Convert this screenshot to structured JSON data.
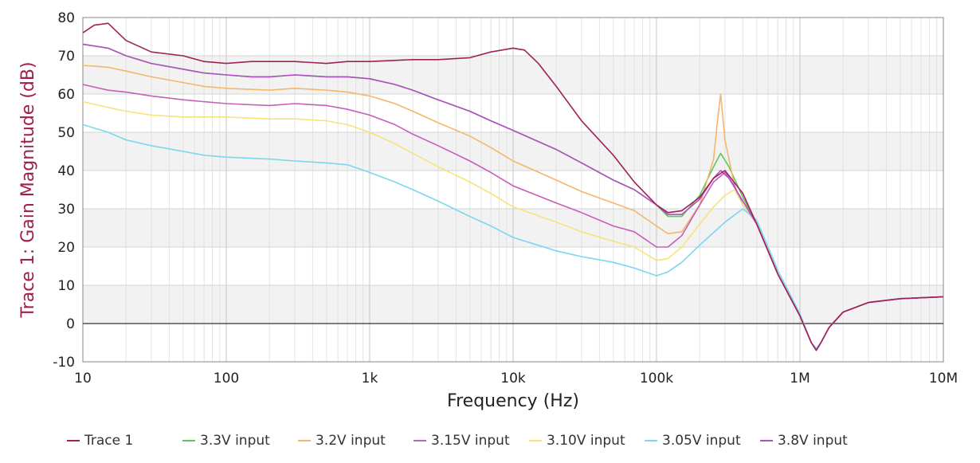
{
  "chart_data": {
    "type": "line",
    "title": "",
    "xlabel": "Frequency (Hz)",
    "ylabel": "Trace 1: Gain Magnitude (dB)",
    "x_scale": "log",
    "xlim": [
      10,
      10000000
    ],
    "ylim": [
      -10,
      80
    ],
    "x_ticks": [
      10,
      100,
      1000,
      10000,
      100000,
      1000000,
      10000000
    ],
    "x_tick_labels": [
      "10",
      "100",
      "1k",
      "10k",
      "100k",
      "1M",
      "10M"
    ],
    "y_ticks": [
      -10,
      0,
      10,
      20,
      30,
      40,
      50,
      60,
      70,
      80
    ],
    "grid": true,
    "legend_position": "bottom",
    "colors": {
      "ylabel": "#a0204a",
      "background_band": "#f2f2f2",
      "grid": "#d4d4d4",
      "zero_line": "#333333"
    },
    "series": [
      {
        "name": "Trace 1",
        "color": "#a0205a",
        "x": [
          10,
          12,
          15,
          20,
          30,
          50,
          70,
          100,
          150,
          200,
          300,
          500,
          700,
          1000,
          2000,
          3000,
          5000,
          7000,
          10000,
          12000,
          15000,
          20000,
          30000,
          50000,
          70000,
          100000,
          120000,
          150000,
          200000,
          250000,
          300000,
          400000,
          500000,
          700000,
          1000000,
          1200000,
          1300000,
          1400000,
          1600000,
          2000000,
          3000000,
          5000000,
          10000000
        ],
        "y": [
          76,
          78,
          78.5,
          74,
          71,
          70,
          68.5,
          68,
          68.5,
          68.5,
          68.5,
          68,
          68.5,
          68.5,
          69,
          69,
          69.5,
          71,
          72,
          71.5,
          68,
          62,
          53,
          44,
          37,
          31,
          29,
          29.5,
          33,
          38,
          40,
          34,
          26,
          13,
          2,
          -5,
          -7,
          -5,
          -1,
          3,
          5.5,
          6.5,
          7
        ]
      },
      {
        "name": "3.3V input",
        "color": "#5ec75a",
        "x": [
          10,
          15,
          20,
          30,
          50,
          70,
          100,
          150,
          200,
          300,
          500,
          700,
          1000,
          1500,
          2000,
          3000,
          5000,
          7000,
          10000,
          20000,
          30000,
          50000,
          70000,
          100000,
          120000,
          150000,
          200000,
          250000,
          280000,
          320000,
          400000,
          500000,
          700000,
          1000000,
          1200000,
          1300000,
          1400000,
          1600000,
          2000000,
          3000000,
          5000000,
          10000000
        ],
        "y": [
          73,
          72,
          70,
          68,
          66.5,
          65.5,
          65,
          64.5,
          64.5,
          65,
          64.5,
          64.5,
          64,
          62.5,
          61,
          58.5,
          55.5,
          53,
          50.5,
          45.5,
          42,
          37.5,
          35,
          31,
          28,
          28,
          33.5,
          41,
          44.5,
          41,
          33,
          26,
          13,
          2,
          -5,
          -7,
          -5,
          -1,
          3,
          5.5,
          6.5,
          7
        ]
      },
      {
        "name": "3.2V input",
        "color": "#f4b76a",
        "x": [
          10,
          15,
          20,
          30,
          50,
          70,
          100,
          200,
          300,
          500,
          700,
          1000,
          1500,
          2000,
          3000,
          5000,
          7000,
          10000,
          20000,
          30000,
          50000,
          70000,
          100000,
          120000,
          150000,
          200000,
          250000,
          270000,
          280000,
          300000,
          350000,
          400000,
          500000,
          700000,
          1000000,
          1200000,
          1300000,
          1400000,
          1600000,
          2000000,
          3000000,
          5000000,
          10000000
        ],
        "y": [
          67.5,
          67,
          66,
          64.5,
          63,
          62,
          61.5,
          61,
          61.5,
          61,
          60.5,
          59.5,
          57.5,
          55.5,
          52.5,
          49,
          46,
          42.5,
          37.5,
          34.5,
          31.5,
          29.5,
          25.5,
          23.5,
          24,
          31,
          43,
          55,
          60,
          48,
          36,
          31,
          26,
          13,
          2,
          -5,
          -7,
          -5,
          -1,
          3,
          5.5,
          6.5,
          7
        ]
      },
      {
        "name": "3.15V input",
        "color": "#c65fb8",
        "x": [
          10,
          15,
          20,
          30,
          50,
          70,
          100,
          200,
          300,
          500,
          700,
          1000,
          1500,
          2000,
          3000,
          5000,
          7000,
          10000,
          20000,
          30000,
          50000,
          70000,
          100000,
          120000,
          150000,
          200000,
          250000,
          300000,
          350000,
          400000,
          500000,
          700000,
          1000000,
          1200000,
          1300000,
          1400000,
          1600000,
          2000000,
          3000000,
          5000000,
          10000000
        ],
        "y": [
          62.5,
          61,
          60.5,
          59.5,
          58.5,
          58,
          57.5,
          57,
          57.5,
          57,
          56,
          54.5,
          52,
          49.5,
          46.5,
          42.5,
          39.5,
          36,
          31.5,
          29,
          25.5,
          24,
          20,
          20,
          23,
          31,
          37,
          39.5,
          36,
          31,
          26,
          13,
          2,
          -5,
          -7,
          -5,
          -1,
          3,
          5.5,
          6.5,
          7
        ]
      },
      {
        "name": "3.10V input",
        "color": "#f8e27a",
        "x": [
          10,
          15,
          20,
          30,
          50,
          70,
          100,
          200,
          300,
          500,
          700,
          1000,
          1500,
          2000,
          3000,
          5000,
          7000,
          10000,
          20000,
          30000,
          50000,
          70000,
          100000,
          120000,
          150000,
          200000,
          250000,
          300000,
          350000,
          400000,
          500000,
          700000,
          1000000,
          1200000,
          1300000,
          1400000,
          1600000,
          2000000,
          3000000,
          5000000,
          10000000
        ],
        "y": [
          58,
          56.5,
          55.5,
          54.5,
          54,
          54,
          54,
          53.5,
          53.5,
          53,
          52,
          50,
          47,
          44.5,
          41,
          37,
          34,
          30.5,
          26.5,
          24,
          21.5,
          20,
          16.5,
          17,
          20,
          26,
          30.5,
          33.5,
          35,
          31,
          26,
          13,
          2,
          -5,
          -7,
          -5,
          -1,
          3,
          5.5,
          6.5,
          7
        ]
      },
      {
        "name": "3.05V input",
        "color": "#7ad7ee",
        "x": [
          10,
          15,
          20,
          30,
          50,
          70,
          100,
          200,
          300,
          500,
          700,
          1000,
          1500,
          2000,
          3000,
          5000,
          7000,
          10000,
          20000,
          30000,
          50000,
          70000,
          100000,
          120000,
          150000,
          200000,
          300000,
          400000,
          500000,
          700000,
          1000000,
          1200000,
          1300000,
          1400000,
          1600000,
          2000000,
          3000000,
          5000000,
          10000000
        ],
        "y": [
          52,
          50,
          48,
          46.5,
          45,
          44,
          43.5,
          43,
          42.5,
          42,
          41.5,
          39.5,
          37,
          35,
          32,
          28,
          25.5,
          22.5,
          19,
          17.5,
          16,
          14.5,
          12.5,
          13.5,
          16,
          20.5,
          26.5,
          30,
          27,
          14,
          2.5,
          -5,
          -6.5,
          -5,
          -1,
          3,
          5.5,
          6.5,
          7
        ]
      },
      {
        "name": "3.8V input",
        "color": "#b24fc4",
        "x": [
          10,
          15,
          20,
          30,
          50,
          70,
          100,
          150,
          200,
          300,
          500,
          700,
          1000,
          1500,
          2000,
          3000,
          5000,
          7000,
          10000,
          20000,
          30000,
          50000,
          70000,
          100000,
          120000,
          150000,
          200000,
          250000,
          280000,
          320000,
          400000,
          500000,
          700000,
          1000000,
          1200000,
          1300000,
          1400000,
          1600000,
          2000000,
          3000000,
          5000000,
          10000000
        ],
        "y": [
          73,
          72,
          70,
          68,
          66.5,
          65.5,
          65,
          64.5,
          64.5,
          65,
          64.5,
          64.5,
          64,
          62.5,
          61,
          58.5,
          55.5,
          53,
          50.5,
          45.5,
          42,
          37.5,
          35,
          31,
          28.5,
          28.5,
          32.5,
          38,
          40,
          38,
          32,
          26,
          13,
          2,
          -5,
          -7,
          -5,
          -1,
          3,
          5.5,
          6.5,
          7
        ]
      }
    ]
  }
}
